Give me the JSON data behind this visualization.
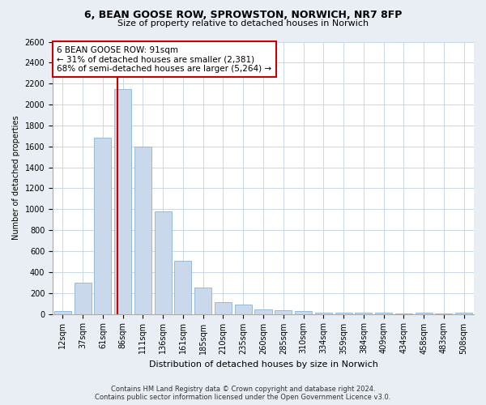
{
  "title1": "6, BEAN GOOSE ROW, SPROWSTON, NORWICH, NR7 8FP",
  "title2": "Size of property relative to detached houses in Norwich",
  "xlabel": "Distribution of detached houses by size in Norwich",
  "ylabel": "Number of detached properties",
  "bar_labels": [
    "12sqm",
    "37sqm",
    "61sqm",
    "86sqm",
    "111sqm",
    "136sqm",
    "161sqm",
    "185sqm",
    "210sqm",
    "235sqm",
    "260sqm",
    "285sqm",
    "310sqm",
    "334sqm",
    "359sqm",
    "384sqm",
    "409sqm",
    "434sqm",
    "458sqm",
    "483sqm",
    "508sqm"
  ],
  "bar_values": [
    25,
    300,
    1680,
    2150,
    1600,
    980,
    510,
    250,
    115,
    90,
    40,
    35,
    25,
    15,
    10,
    10,
    10,
    5,
    10,
    5,
    10
  ],
  "bar_color": "#c9d9eb",
  "bar_edgecolor": "#8ab4d4",
  "annotation_text_line1": "6 BEAN GOOSE ROW: 91sqm",
  "annotation_text_line2": "← 31% of detached houses are smaller (2,381)",
  "annotation_text_line3": "68% of semi-detached houses are larger (5,264) →",
  "annotation_box_facecolor": "#ffffff",
  "annotation_box_edgecolor": "#cc0000",
  "vline_color": "#cc0000",
  "ylim": [
    0,
    2600
  ],
  "yticks": [
    0,
    200,
    400,
    600,
    800,
    1000,
    1200,
    1400,
    1600,
    1800,
    2000,
    2200,
    2400,
    2600
  ],
  "footer1": "Contains HM Land Registry data © Crown copyright and database right 2024.",
  "footer2": "Contains public sector information licensed under the Open Government Licence v3.0.",
  "bg_color": "#e8eef4",
  "plot_bg_color": "#ffffff",
  "grid_color": "#c8d8e8",
  "title1_fontsize": 9,
  "title2_fontsize": 8,
  "xlabel_fontsize": 8,
  "ylabel_fontsize": 7,
  "tick_fontsize": 7,
  "ann_fontsize": 7.5,
  "footer_fontsize": 6
}
